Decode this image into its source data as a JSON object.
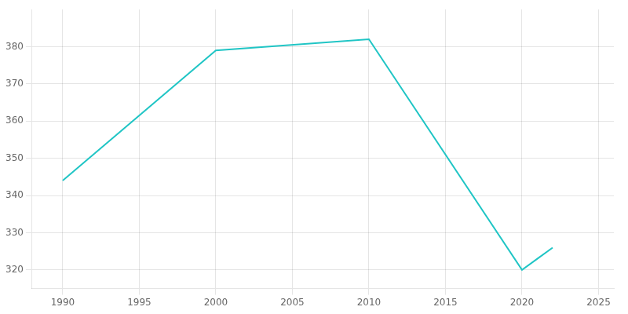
{
  "chart_data": {
    "type": "line",
    "x": [
      1990,
      2000,
      2010,
      2020,
      2021,
      2022
    ],
    "values": [
      344,
      379,
      382,
      320,
      323,
      326
    ],
    "color": "#20C5C5",
    "xlim": [
      1988,
      2026
    ],
    "ylim": [
      315,
      390
    ],
    "xticks": [
      1990,
      1995,
      2000,
      2005,
      2010,
      2015,
      2020,
      2025
    ],
    "yticks": [
      320,
      330,
      340,
      350,
      360,
      370,
      380
    ],
    "grid": true
  }
}
